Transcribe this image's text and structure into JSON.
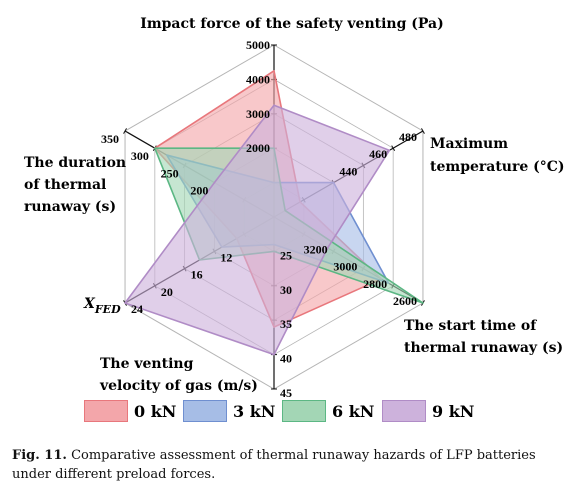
{
  "chart_data": {
    "type": "radar",
    "grid_levels": 5,
    "axes": [
      {
        "key": "impact",
        "label": [
          "Impact force of the safety venting  (Pa)"
        ],
        "ticks": [
          "2000",
          "3000",
          "4000",
          "5000"
        ],
        "range": [
          1000,
          5000
        ],
        "reversed": false
      },
      {
        "key": "temp",
        "label": [
          "Maximum",
          "temperature (°C)"
        ],
        "ticks": [
          "440",
          "460",
          "480"
        ],
        "range": [
          400,
          480
        ],
        "reversed": false
      },
      {
        "key": "start",
        "label": [
          "The start time of",
          "thermal runaway (s)"
        ],
        "ticks": [
          "3200",
          "3000",
          "2800",
          "2600"
        ],
        "range": [
          3600,
          2600
        ],
        "reversed": true
      },
      {
        "key": "velocity",
        "label": [
          "The venting",
          "velocity of gas (m/s)"
        ],
        "ticks": [
          "25",
          "30",
          "35",
          "40",
          "45"
        ],
        "range": [
          20,
          45
        ],
        "reversed": true
      },
      {
        "key": "xfed",
        "label": [
          "X",
          "FED"
        ],
        "ticks": [
          "12",
          "16",
          "20",
          "24"
        ],
        "range": [
          4,
          24
        ],
        "reversed": false
      },
      {
        "key": "duration",
        "label": [
          "The duration",
          "of thermal",
          "runaway (s)"
        ],
        "ticks": [
          "200",
          "250",
          "300",
          "350"
        ],
        "range": [
          100,
          350
        ],
        "reversed": false
      }
    ],
    "series": [
      {
        "name": "0 kN",
        "color": "#e8777c",
        "fill": "#f3a6aa",
        "values": [
          4400,
          414,
          2880,
          36,
          9,
          300
        ]
      },
      {
        "name": "3 kN",
        "color": "#6f8fd0",
        "fill": "#a6bde6",
        "values": [
          1800,
          432,
          2830,
          24,
          11,
          280
        ]
      },
      {
        "name": "6 kN",
        "color": "#5cb784",
        "fill": "#a3d6b5",
        "values": [
          2600,
          406,
          2600,
          25,
          14,
          300
        ]
      },
      {
        "name": "9 kN",
        "color": "#b08cc6",
        "fill": "#cdb2dc",
        "values": [
          3600,
          462,
          3240,
          40,
          24,
          200
        ]
      }
    ]
  },
  "caption": {
    "label": "Fig. 11.",
    "text": "Comparative assessment of thermal runaway hazards of LFP batteries under different preload forces."
  }
}
